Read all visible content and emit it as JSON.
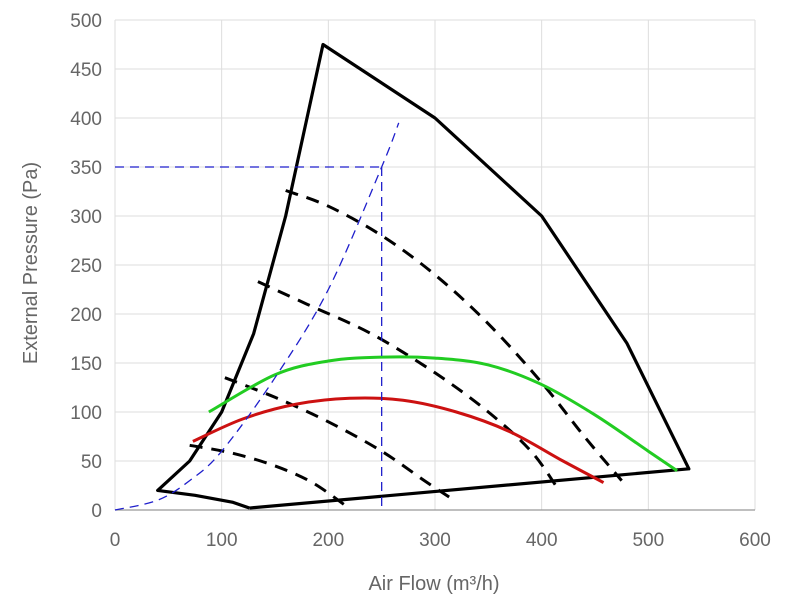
{
  "chart_data": {
    "type": "line",
    "title": "",
    "xlabel": "Air Flow (m³/h)",
    "ylabel": "External Pressure (Pa)",
    "xlim": [
      0,
      600
    ],
    "ylim": [
      0,
      500
    ],
    "x_ticks": [
      0,
      100,
      200,
      300,
      400,
      500,
      600
    ],
    "y_ticks": [
      0,
      50,
      100,
      150,
      200,
      250,
      300,
      350,
      400,
      450,
      500
    ],
    "grid": true,
    "colors": {
      "grid": "#dddddd",
      "envelope": "#000000",
      "speed_curves": "#000000",
      "green_curve": "#22cc22",
      "red_curve": "#cc1111",
      "operating_point": "#1f1fcc",
      "tick_label": "#666666"
    },
    "series": [
      {
        "name": "operating-envelope",
        "style": "solid",
        "color": "#000000",
        "points": [
          [
            126,
            2
          ],
          [
            538,
            42
          ],
          [
            480,
            170
          ],
          [
            400,
            300
          ],
          [
            300,
            400
          ],
          [
            195,
            475
          ],
          [
            160,
            300
          ],
          [
            130,
            180
          ],
          [
            100,
            100
          ],
          [
            70,
            50
          ],
          [
            40,
            20
          ],
          [
            75,
            15
          ],
          [
            110,
            8
          ],
          [
            126,
            2
          ]
        ]
      },
      {
        "name": "speed-curve-1",
        "style": "dashed",
        "color": "#000000",
        "points": [
          [
            70,
            66
          ],
          [
            110,
            58
          ],
          [
            150,
            45
          ],
          [
            185,
            28
          ],
          [
            218,
            3
          ]
        ]
      },
      {
        "name": "speed-curve-2",
        "style": "dashed",
        "color": "#000000",
        "points": [
          [
            103,
            135
          ],
          [
            150,
            115
          ],
          [
            200,
            90
          ],
          [
            250,
            60
          ],
          [
            290,
            30
          ],
          [
            315,
            12
          ]
        ]
      },
      {
        "name": "speed-curve-3",
        "style": "dashed",
        "color": "#000000",
        "points": [
          [
            134,
            233
          ],
          [
            180,
            210
          ],
          [
            240,
            180
          ],
          [
            300,
            140
          ],
          [
            350,
            100
          ],
          [
            390,
            60
          ],
          [
            415,
            22
          ]
        ]
      },
      {
        "name": "speed-curve-4",
        "style": "dashed",
        "color": "#000000",
        "points": [
          [
            160,
            326
          ],
          [
            200,
            310
          ],
          [
            250,
            280
          ],
          [
            300,
            240
          ],
          [
            350,
            190
          ],
          [
            400,
            130
          ],
          [
            440,
            75
          ],
          [
            475,
            30
          ]
        ]
      },
      {
        "name": "green-curve",
        "style": "solid",
        "color": "#22cc22",
        "points": [
          [
            88,
            100
          ],
          [
            150,
            138
          ],
          [
            200,
            152
          ],
          [
            250,
            156
          ],
          [
            300,
            155
          ],
          [
            350,
            148
          ],
          [
            400,
            128
          ],
          [
            450,
            97
          ],
          [
            500,
            60
          ],
          [
            527,
            40
          ]
        ]
      },
      {
        "name": "red-curve",
        "style": "solid",
        "color": "#cc1111",
        "points": [
          [
            73,
            70
          ],
          [
            120,
            93
          ],
          [
            170,
            108
          ],
          [
            220,
            114
          ],
          [
            270,
            112
          ],
          [
            320,
            100
          ],
          [
            370,
            80
          ],
          [
            420,
            50
          ],
          [
            458,
            28
          ]
        ]
      },
      {
        "name": "system-curve",
        "style": "blue-dashed",
        "color": "#1f1fcc",
        "points": [
          [
            0,
            0
          ],
          [
            40,
            10
          ],
          [
            70,
            30
          ],
          [
            100,
            60
          ],
          [
            150,
            135
          ],
          [
            200,
            225
          ],
          [
            250,
            350
          ],
          [
            266,
            395
          ]
        ]
      }
    ],
    "operating_point": {
      "x": 250,
      "y": 350,
      "color": "#1f1fcc"
    }
  }
}
